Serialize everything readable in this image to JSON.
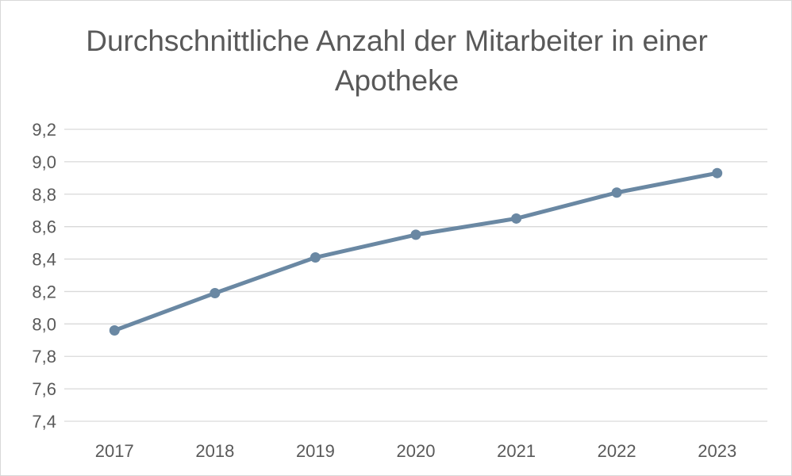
{
  "chart_data": {
    "type": "line",
    "title": "Durchschnittliche Anzahl der Mitarbeiter in einer Apotheke",
    "xlabel": "",
    "ylabel": "",
    "categories": [
      "2017",
      "2018",
      "2019",
      "2020",
      "2021",
      "2022",
      "2023"
    ],
    "series": [
      {
        "values": [
          7.96,
          8.19,
          8.41,
          8.55,
          8.65,
          8.81,
          8.93
        ],
        "color": "#6a88a3"
      }
    ],
    "ylim": [
      7.4,
      9.2
    ],
    "ytick_step": 0.2,
    "ytick_labels": [
      "7,4",
      "7,6",
      "7,8",
      "8,0",
      "8,2",
      "8,4",
      "8,6",
      "8,8",
      "9,0",
      "9,2"
    ],
    "grid": true,
    "legend": "none",
    "marker": "circle"
  }
}
